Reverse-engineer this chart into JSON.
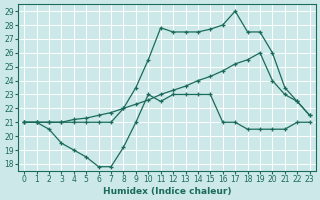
{
  "bg_color": "#cce8e8",
  "line_color": "#1a6b5a",
  "grid_color": "#ffffff",
  "xlabel": "Humidex (Indice chaleur)",
  "xlim": [
    -0.5,
    23.5
  ],
  "ylim": [
    17.5,
    29.5
  ],
  "xticks": [
    0,
    1,
    2,
    3,
    4,
    5,
    6,
    7,
    8,
    9,
    10,
    11,
    12,
    13,
    14,
    15,
    16,
    17,
    18,
    19,
    20,
    21,
    22,
    23
  ],
  "yticks": [
    18,
    19,
    20,
    21,
    22,
    23,
    24,
    25,
    26,
    27,
    28,
    29
  ],
  "series": [
    {
      "x": [
        0,
        1,
        2,
        3,
        4,
        5,
        6,
        7,
        8,
        9,
        10,
        11,
        12,
        13,
        14,
        15,
        16,
        17,
        18,
        19,
        20,
        21,
        22,
        23
      ],
      "y": [
        21,
        21,
        21,
        21,
        21,
        21,
        21,
        21,
        22,
        23.5,
        25.5,
        27.8,
        27.5,
        27.5,
        27.5,
        27.7,
        28,
        29,
        27.5,
        27.5,
        26,
        23.5,
        22.5,
        21.5
      ]
    },
    {
      "x": [
        0,
        1,
        2,
        3,
        4,
        5,
        6,
        7,
        8,
        9,
        10,
        11,
        12,
        13,
        14,
        15,
        16,
        17,
        18,
        19,
        20,
        21,
        22,
        23
      ],
      "y": [
        21,
        21,
        21,
        21,
        21.2,
        21.3,
        21.5,
        21.7,
        22,
        22.3,
        22.6,
        23,
        23.3,
        23.6,
        24,
        24.3,
        24.7,
        25.2,
        25.5,
        26,
        24,
        23,
        22.5,
        21.5
      ]
    },
    {
      "x": [
        0,
        1,
        2,
        3,
        4,
        5,
        6,
        7,
        8,
        9,
        10,
        11,
        12,
        13,
        14,
        15,
        16,
        17,
        18,
        19,
        20,
        21,
        22,
        23
      ],
      "y": [
        21,
        21,
        20.5,
        19.5,
        19,
        18.5,
        17.8,
        17.8,
        19.2,
        21,
        23,
        22.5,
        23,
        23,
        23,
        23,
        21,
        21,
        20.5,
        20.5,
        20.5,
        20.5,
        21,
        21
      ]
    }
  ]
}
